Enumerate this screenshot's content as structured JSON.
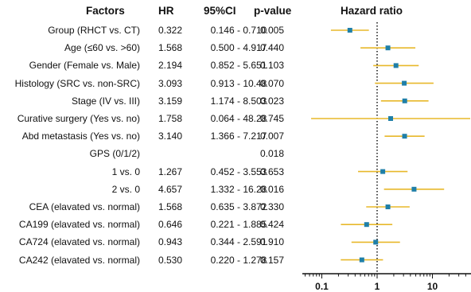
{
  "table": {
    "headers": {
      "factors": "Factors",
      "hr": "HR",
      "ci": "95%CI",
      "pvalue": "p-value"
    },
    "rows": [
      {
        "factor": "Group (RHCT vs. CT)",
        "hr": "0.322",
        "ci": "0.146 - 0.710",
        "p": "0.005"
      },
      {
        "factor": "Age (≤60 vs. >60)",
        "hr": "1.568",
        "ci": "0.500 - 4.917",
        "p": "0.440"
      },
      {
        "factor": "Gender (Female vs. Male)",
        "hr": "2.194",
        "ci": "0.852 - 5.651",
        "p": "0.103"
      },
      {
        "factor": "Histology (SRC vs. non-SRC)",
        "hr": "3.093",
        "ci": "0.913 - 10.48",
        "p": "0.070"
      },
      {
        "factor": "Stage (IV vs. III)",
        "hr": "3.159",
        "ci": "1.174 - 8.503",
        "p": "0.023"
      },
      {
        "factor": "Curative surgery (Yes vs. no)",
        "hr": "1.758",
        "ci": "0.064 - 48.28",
        "p": "0.745"
      },
      {
        "factor": "Abd metastasis (Yes vs. no)",
        "hr": "3.140",
        "ci": "1.366 - 7.217",
        "p": "0.007"
      },
      {
        "factor": "GPS (0/1/2)",
        "hr": "",
        "ci": "",
        "p": "0.018"
      },
      {
        "factor": "1 vs. 0",
        "hr": "1.267",
        "ci": "0.452 - 3.553",
        "p": "0.653"
      },
      {
        "factor": "2 vs. 0",
        "hr": "4.657",
        "ci": "1.332 - 16.28",
        "p": "0.016"
      },
      {
        "factor": "CEA (elavated vs. normal)",
        "hr": "1.568",
        "ci": "0.635 - 3.872",
        "p": "0.330"
      },
      {
        "factor": "CA199 (elavated vs. normal)",
        "hr": "0.646",
        "ci": "0.221 - 1.885",
        "p": "0.424"
      },
      {
        "factor": "CA724 (elavated vs. normal)",
        "hr": "0.943",
        "ci": "0.344 - 2.591",
        "p": "0.910"
      },
      {
        "factor": "CA242 (elavated vs. normal)",
        "hr": "0.530",
        "ci": "0.220 - 1.278",
        "p": "0.157"
      }
    ]
  },
  "chart_data": {
    "type": "scatter",
    "title": "Hazard ratio",
    "xscale": "log",
    "xlim": [
      0.07,
      45
    ],
    "xticks": [
      0.1,
      1,
      10
    ],
    "xtick_labels": [
      "0.1",
      "1",
      "10"
    ],
    "reference_line": 1,
    "grid": false,
    "points": [
      {
        "hr": 0.322,
        "lo": 0.146,
        "hi": 0.71
      },
      {
        "hr": 1.568,
        "lo": 0.5,
        "hi": 4.917
      },
      {
        "hr": 2.194,
        "lo": 0.852,
        "hi": 5.651
      },
      {
        "hr": 3.093,
        "lo": 0.913,
        "hi": 10.48
      },
      {
        "hr": 3.159,
        "lo": 1.174,
        "hi": 8.503
      },
      {
        "hr": 1.758,
        "lo": 0.064,
        "hi": 48.28
      },
      {
        "hr": 3.14,
        "lo": 1.366,
        "hi": 7.217
      },
      null,
      {
        "hr": 1.267,
        "lo": 0.452,
        "hi": 3.553
      },
      {
        "hr": 4.657,
        "lo": 1.332,
        "hi": 16.28
      },
      {
        "hr": 1.568,
        "lo": 0.635,
        "hi": 3.872
      },
      {
        "hr": 0.646,
        "lo": 0.221,
        "hi": 1.885
      },
      {
        "hr": 0.943,
        "lo": 0.344,
        "hi": 2.591
      },
      {
        "hr": 0.53,
        "lo": 0.22,
        "hi": 1.278
      }
    ],
    "colors": {
      "ci_line": "#e8b82a",
      "point": "#1f7fa8",
      "axis": "#111111"
    }
  }
}
